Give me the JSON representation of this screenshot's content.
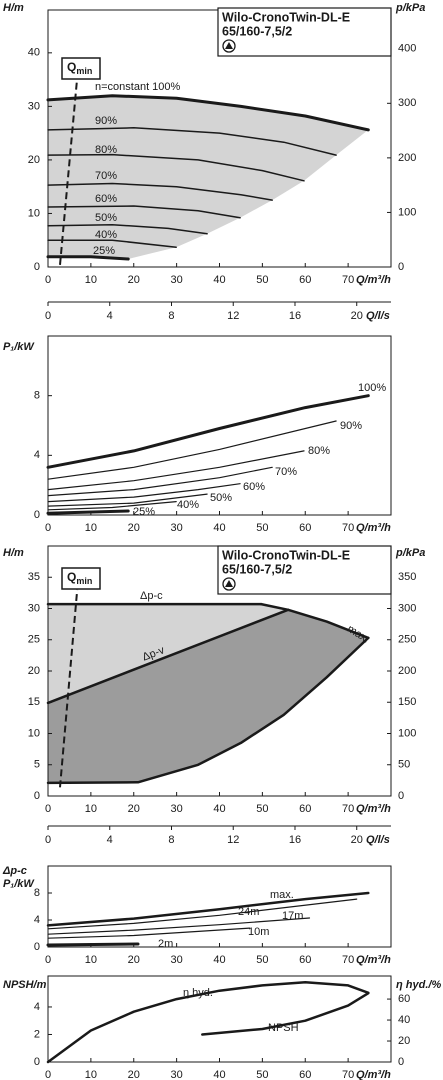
{
  "chart_data": [
    {
      "type": "line",
      "title": "Wilo-CronoTwin-DL-E",
      "subtitle": "65/160-7,5/2",
      "y_label": "H/m",
      "y2_label": "p/kPa",
      "x_label": "Q/m³/h",
      "x2_label": "Q/l/s",
      "xlim": [
        0,
        80
      ],
      "xticks": [
        0,
        10,
        20,
        30,
        40,
        50,
        60,
        70
      ],
      "x2lim": [
        0,
        22.22
      ],
      "x2ticks": [
        0,
        4,
        8,
        12,
        16,
        20
      ],
      "ylim": [
        0,
        48
      ],
      "yticks": [
        0,
        10,
        20,
        30,
        40
      ],
      "y2lim": [
        0,
        471
      ],
      "y2ticks": [
        0,
        100,
        200,
        300,
        400
      ],
      "fill": "#d4d4d4",
      "qmin": {
        "text": "Q",
        "sub": "min",
        "x": [
          2.8,
          7
        ],
        "values": [
          0.4,
          37
        ]
      },
      "series": [
        {
          "name": "n=constant 100%",
          "color": "#1a1a1a",
          "width": 3,
          "x": [
            0,
            15,
            30,
            45,
            60,
            74.7
          ],
          "values": [
            31.2,
            32,
            31.5,
            30,
            28.2,
            25.6
          ]
        },
        {
          "name": "90%",
          "color": "#1a1a1a",
          "width": 1.5,
          "x": [
            0,
            20,
            40,
            55,
            67.2
          ],
          "values": [
            25.6,
            26,
            25,
            23.3,
            20.9
          ]
        },
        {
          "name": "80%",
          "color": "#1a1a1a",
          "width": 1.5,
          "x": [
            0,
            15,
            35,
            50,
            59.7
          ],
          "values": [
            20.9,
            21,
            20,
            18,
            16.1
          ]
        },
        {
          "name": "70%",
          "color": "#1a1a1a",
          "width": 1.5,
          "x": [
            0,
            15,
            30,
            45,
            52.3
          ],
          "values": [
            15.3,
            15.6,
            15,
            13.5,
            12.5
          ]
        },
        {
          "name": "60%",
          "color": "#1a1a1a",
          "width": 1.5,
          "x": [
            0,
            20,
            35,
            44.8
          ],
          "values": [
            11.2,
            11.4,
            10.5,
            9.2
          ]
        },
        {
          "name": "50%",
          "color": "#1a1a1a",
          "width": 1.5,
          "x": [
            0,
            15,
            28,
            37.1
          ],
          "values": [
            7.7,
            7.9,
            7.2,
            6.2
          ]
        },
        {
          "name": "40%",
          "color": "#1a1a1a",
          "width": 1.5,
          "x": [
            0,
            15,
            29.9
          ],
          "values": [
            5,
            5,
            3.7
          ]
        },
        {
          "name": "25%",
          "color": "#1a1a1a",
          "width": 3,
          "x": [
            0,
            10,
            18.7
          ],
          "values": [
            1.9,
            1.9,
            1.5
          ]
        }
      ]
    },
    {
      "type": "line",
      "y_label": "P₁/kW",
      "x_label": "Q/m³/h",
      "xlim": [
        0,
        80
      ],
      "xticks": [
        0,
        10,
        20,
        30,
        40,
        50,
        60,
        70
      ],
      "ylim": [
        0,
        12
      ],
      "yticks": [
        0,
        4,
        8
      ],
      "series": [
        {
          "name": "100%",
          "color": "#1a1a1a",
          "width": 3,
          "x": [
            0,
            20,
            40,
            60,
            74.7
          ],
          "values": [
            3.2,
            4.3,
            5.8,
            7.2,
            8.0
          ]
        },
        {
          "name": "90%",
          "color": "#1a1a1a",
          "width": 1.2,
          "x": [
            0,
            20,
            40,
            67.2
          ],
          "values": [
            2.4,
            3.2,
            4.4,
            6.3
          ]
        },
        {
          "name": "80%",
          "color": "#1a1a1a",
          "width": 1.2,
          "x": [
            0,
            20,
            40,
            59.7
          ],
          "values": [
            1.7,
            2.3,
            3.2,
            4.3
          ]
        },
        {
          "name": "70%",
          "color": "#1a1a1a",
          "width": 1.2,
          "x": [
            0,
            20,
            40,
            52.3
          ],
          "values": [
            1.3,
            1.7,
            2.5,
            3.2
          ]
        },
        {
          "name": "60%",
          "color": "#1a1a1a",
          "width": 1.2,
          "x": [
            0,
            20,
            35,
            44.8
          ],
          "values": [
            0.9,
            1.2,
            1.7,
            2.1
          ]
        },
        {
          "name": "50%",
          "color": "#1a1a1a",
          "width": 1.2,
          "x": [
            0,
            20,
            37.1
          ],
          "values": [
            0.6,
            0.8,
            1.4
          ]
        },
        {
          "name": "40%",
          "color": "#1a1a1a",
          "width": 1.2,
          "x": [
            0,
            15,
            29.9
          ],
          "values": [
            0.35,
            0.5,
            0.9
          ]
        },
        {
          "name": "25%",
          "color": "#1a1a1a",
          "width": 3,
          "x": [
            0,
            18.7
          ],
          "values": [
            0.12,
            0.27
          ]
        }
      ]
    },
    {
      "type": "line",
      "title": "Wilo-CronoTwin-DL-E",
      "subtitle": "65/160-7,5/2",
      "y_label": "H/m",
      "y2_label": "p/kPa",
      "x_label": "Q/m³/h",
      "x2_label": "Q/l/s",
      "xlim": [
        0,
        80
      ],
      "xticks": [
        0,
        10,
        20,
        30,
        40,
        50,
        60,
        70
      ],
      "x2lim": [
        0,
        22.22
      ],
      "x2ticks": [
        0,
        4,
        8,
        12,
        16,
        20
      ],
      "ylim": [
        0,
        40
      ],
      "yticks": [
        0,
        5,
        10,
        15,
        20,
        25,
        30,
        35
      ],
      "y2lim": [
        0,
        400
      ],
      "y2ticks": [
        0,
        50,
        100,
        150,
        200,
        250,
        300,
        350
      ],
      "fills": [
        "#d4d4d4",
        "#9c9c9c"
      ],
      "qmin": {
        "text": "Q",
        "sub": "min",
        "x": [
          2.8,
          6.8
        ],
        "values": [
          1.4,
          33
        ]
      },
      "series": [
        {
          "name": "Δp-c",
          "color": "#1a1a1a",
          "width": 2.5,
          "x": [
            0,
            49.7
          ],
          "values": [
            30.7,
            30.7
          ]
        },
        {
          "name": "Δp-v",
          "color": "#1a1a1a",
          "width": 2.5,
          "x": [
            0,
            56
          ],
          "values": [
            14.9,
            29.8
          ]
        },
        {
          "name": "max.",
          "color": "#1a1a1a",
          "width": 2.5,
          "x": [
            49.7,
            56,
            65,
            74.7
          ],
          "values": [
            30.7,
            29.8,
            27.9,
            25.3
          ]
        },
        {
          "color": "#1a1a1a",
          "width": 2.5,
          "x": [
            0,
            21,
            35,
            45,
            55,
            65,
            74.7
          ],
          "values": [
            2.1,
            2.2,
            5,
            8.5,
            13,
            19,
            25.3
          ]
        }
      ]
    },
    {
      "type": "line",
      "title": "Δp-c",
      "y_label": "P₁/kW",
      "x_label": "Q/m³/h",
      "xlim": [
        0,
        80
      ],
      "xticks": [
        0,
        10,
        20,
        30,
        40,
        50,
        60,
        70
      ],
      "ylim": [
        0,
        12
      ],
      "yticks": [
        0,
        4,
        8
      ],
      "series": [
        {
          "name": "max.",
          "color": "#1a1a1a",
          "width": 2.5,
          "x": [
            0,
            20,
            40,
            60,
            74.7
          ],
          "values": [
            3.2,
            4.2,
            5.6,
            7.1,
            8.0
          ]
        },
        {
          "name": "24m",
          "color": "#1a1a1a",
          "width": 1.2,
          "x": [
            0,
            20,
            40,
            72
          ],
          "values": [
            2.7,
            3.5,
            4.7,
            7.1
          ]
        },
        {
          "name": "17m",
          "color": "#1a1a1a",
          "width": 1.2,
          "x": [
            0,
            20,
            40,
            61
          ],
          "values": [
            1.9,
            2.5,
            3.3,
            4.3
          ]
        },
        {
          "name": "10m",
          "color": "#1a1a1a",
          "width": 1.2,
          "x": [
            0,
            20,
            47
          ],
          "values": [
            1.3,
            1.7,
            2.8
          ]
        },
        {
          "name": "2m",
          "color": "#1a1a1a",
          "width": 3,
          "x": [
            0,
            21
          ],
          "values": [
            0.3,
            0.45
          ]
        }
      ]
    },
    {
      "type": "line",
      "y_label": "NPSH/m",
      "y2_label": "η hyd./%",
      "x_label": "Q/m³/h",
      "xlim": [
        0,
        80
      ],
      "xticks": [
        0,
        10,
        20,
        30,
        40,
        50,
        60,
        70
      ],
      "ylim": [
        0,
        6.25
      ],
      "yticks": [
        0,
        2,
        4
      ],
      "y2lim": [
        0,
        82
      ],
      "y2ticks": [
        0,
        20,
        40,
        60
      ],
      "series": [
        {
          "name": "η hyd.",
          "axis": "y2",
          "color": "#1a1a1a",
          "width": 2.5,
          "x": [
            0,
            10,
            20,
            30,
            40,
            50,
            60,
            70,
            74.7
          ],
          "values": [
            0,
            30,
            48,
            60,
            68,
            73,
            76,
            73,
            66
          ]
        },
        {
          "name": "NPSH",
          "color": "#1a1a1a",
          "width": 2.5,
          "x": [
            36,
            50,
            60,
            70,
            74.7
          ],
          "values": [
            2.0,
            2.4,
            3.0,
            4.1,
            5.0
          ]
        }
      ]
    }
  ]
}
